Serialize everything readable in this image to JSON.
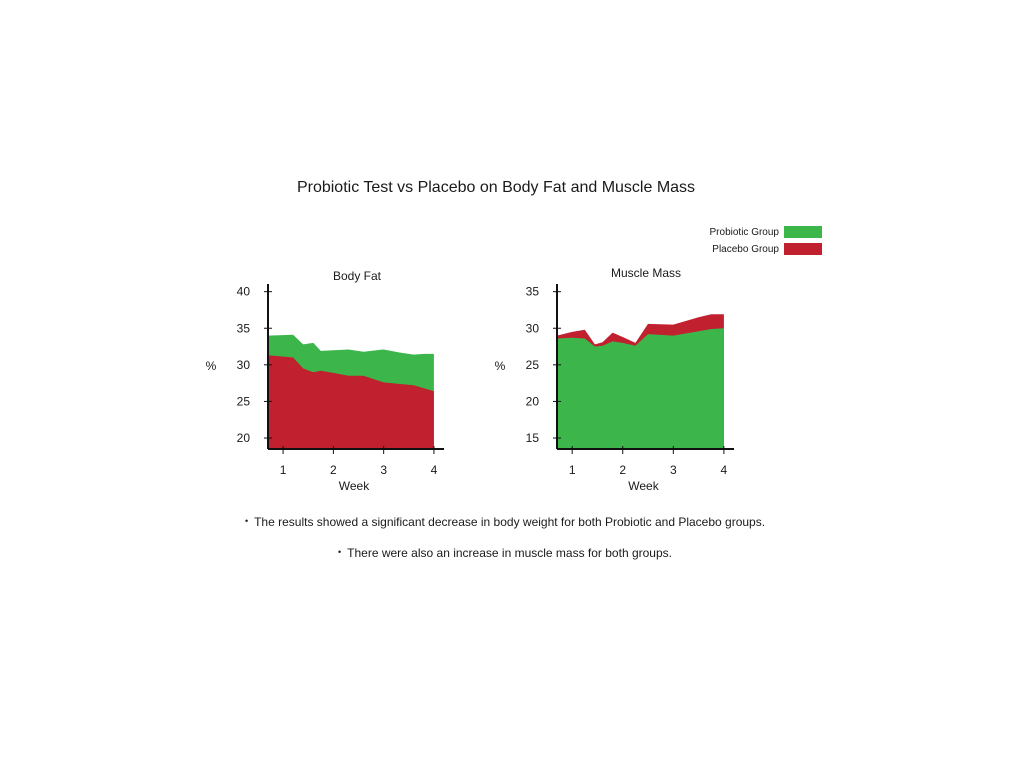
{
  "title": "Probiotic Test vs Placebo on Body Fat and Muscle Mass",
  "legend": [
    {
      "label": "Probiotic Group",
      "color": "#3cb54a"
    },
    {
      "label": "Placebo Group",
      "color": "#c1202f"
    }
  ],
  "notes": [
    "The results showed a significant decrease in body weight for both Probiotic and Placebo groups.",
    "There were also an increase in muscle mass for both groups."
  ],
  "chart_data": [
    {
      "type": "area",
      "title": "Body Fat",
      "xlabel": "Week",
      "ylabel": "%",
      "xticks": [
        1,
        2,
        3,
        4
      ],
      "yticks": [
        20,
        25,
        30,
        35,
        40
      ],
      "xlim": [
        0.7,
        4.2
      ],
      "ylim": [
        18.5,
        40.5
      ],
      "x": [
        0.7,
        1.2,
        1.4,
        1.6,
        1.75,
        2.0,
        2.3,
        2.6,
        3.0,
        3.3,
        3.6,
        3.8,
        4.0
      ],
      "series": [
        {
          "name": "Probiotic Group",
          "color": "#3cb54a",
          "values": [
            34.0,
            34.1,
            32.8,
            33.0,
            31.9,
            32.0,
            32.1,
            31.8,
            32.1,
            31.7,
            31.4,
            31.5,
            31.5
          ]
        },
        {
          "name": "Placebo Group",
          "color": "#c1202f",
          "values": [
            31.3,
            31.0,
            29.5,
            29.0,
            29.2,
            28.9,
            28.5,
            28.5,
            27.6,
            27.4,
            27.2,
            26.8,
            26.4
          ]
        }
      ]
    },
    {
      "type": "area",
      "title": "Muscle Mass",
      "xlabel": "Week",
      "ylabel": "%",
      "xticks": [
        1,
        2,
        3,
        4
      ],
      "yticks": [
        15,
        20,
        25,
        30,
        35
      ],
      "xlim": [
        0.7,
        4.2
      ],
      "ylim": [
        13.5,
        35.5
      ],
      "x": [
        0.7,
        1.0,
        1.25,
        1.45,
        1.6,
        1.8,
        2.0,
        2.25,
        2.5,
        3.0,
        3.5,
        3.75,
        4.0
      ],
      "series": [
        {
          "name": "Placebo Group",
          "color": "#c1202f",
          "values": [
            29.0,
            29.5,
            29.8,
            27.8,
            28.1,
            29.4,
            28.8,
            28.0,
            30.6,
            30.5,
            31.5,
            31.9,
            31.9
          ]
        },
        {
          "name": "Probiotic Group",
          "color": "#3cb54a",
          "values": [
            28.6,
            28.7,
            28.6,
            27.5,
            27.6,
            28.2,
            28.0,
            27.6,
            29.2,
            29.0,
            29.6,
            29.9,
            30.0
          ]
        }
      ]
    }
  ]
}
